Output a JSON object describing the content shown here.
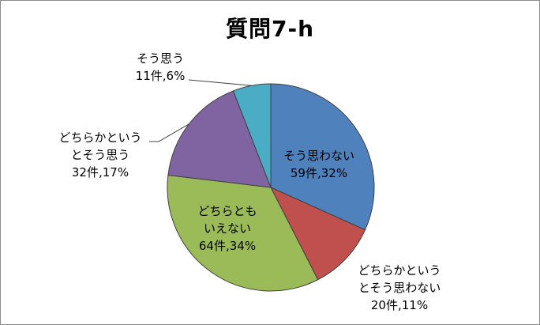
{
  "chart_data": {
    "type": "pie",
    "title": "質問7-h",
    "start_angle_deg": 0,
    "direction": "clockwise",
    "slices": [
      {
        "label": [
          "そう思わない"
        ],
        "count_label": "59件,32%",
        "value": 59,
        "percent": 32,
        "color": "#4f81bd"
      },
      {
        "label": [
          "どちらかという",
          "とそう思わない"
        ],
        "count_label": "20件,11%",
        "value": 20,
        "percent": 11,
        "color": "#c0504d"
      },
      {
        "label": [
          "どちらとも",
          "いえない"
        ],
        "count_label": "64件,34%",
        "value": 64,
        "percent": 34,
        "color": "#9bbb59"
      },
      {
        "label": [
          "どちらかという",
          "とそう思う"
        ],
        "count_label": "32件,17%",
        "value": 32,
        "percent": 17,
        "color": "#8064a2"
      },
      {
        "label": [
          "そう思う"
        ],
        "count_label": "11件,6%",
        "value": 11,
        "percent": 6,
        "color": "#4bacc6"
      }
    ]
  }
}
